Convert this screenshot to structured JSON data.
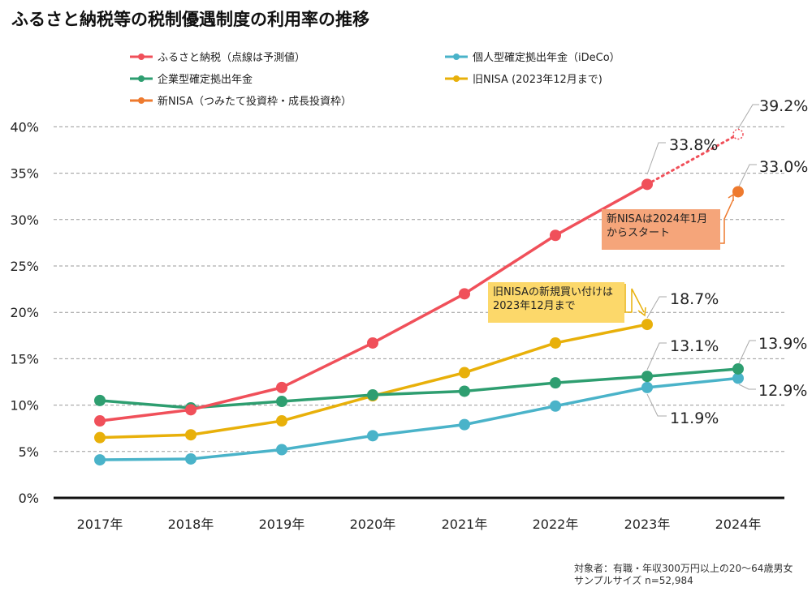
{
  "title": "ふるさと納税等の税制優遇制度の利用率の推移",
  "footnote": {
    "line1": "対象者：有職・年収300万円以上の20〜64歳男女",
    "line2": "サンプルサイズ n=52,984"
  },
  "callouts": {
    "new_nisa": "新NISAは2024年1月からスタート",
    "old_nisa": "旧NISAの新規買い付けは2023年12月まで"
  },
  "chart_data": {
    "type": "line",
    "categories": [
      "2017年",
      "2018年",
      "2019年",
      "2020年",
      "2021年",
      "2022年",
      "2023年",
      "2024年"
    ],
    "ylim": [
      0,
      40
    ],
    "yticks": [
      "0%",
      "5%",
      "10%",
      "15%",
      "20%",
      "25%",
      "30%",
      "35%",
      "40%"
    ],
    "grid": true,
    "legend_position": "top",
    "series": [
      {
        "name": "ふるさと納税（点線は予測値）",
        "color": "#f0505a",
        "values": [
          8.3,
          9.5,
          11.9,
          16.7,
          22.0,
          28.3,
          33.8,
          null
        ],
        "forecast": [
          null,
          null,
          null,
          null,
          null,
          null,
          33.8,
          39.2
        ]
      },
      {
        "name": "個人型確定拠出年金（iDeCo）",
        "color": "#4ab3c9",
        "values": [
          4.1,
          4.2,
          5.2,
          6.7,
          7.9,
          9.9,
          11.9,
          12.9
        ]
      },
      {
        "name": "企業型確定拠出年金",
        "color": "#2e9e70",
        "values": [
          10.5,
          9.7,
          10.4,
          11.1,
          11.5,
          12.4,
          13.1,
          13.9
        ]
      },
      {
        "name": "旧NISA (2023年12月まで)",
        "color": "#e8b00a",
        "values": [
          6.5,
          6.8,
          8.3,
          11.0,
          13.5,
          16.7,
          18.7,
          null
        ]
      },
      {
        "name": "新NISA（つみたて投資枠・成長投資枠）",
        "color": "#ee7a2e",
        "values": [
          null,
          null,
          null,
          null,
          null,
          null,
          null,
          33.0
        ]
      }
    ],
    "annotations": [
      "39.2%",
      "33.8%",
      "33.0%",
      "18.7%",
      "13.1%",
      "13.9%",
      "12.9%",
      "11.9%"
    ]
  }
}
